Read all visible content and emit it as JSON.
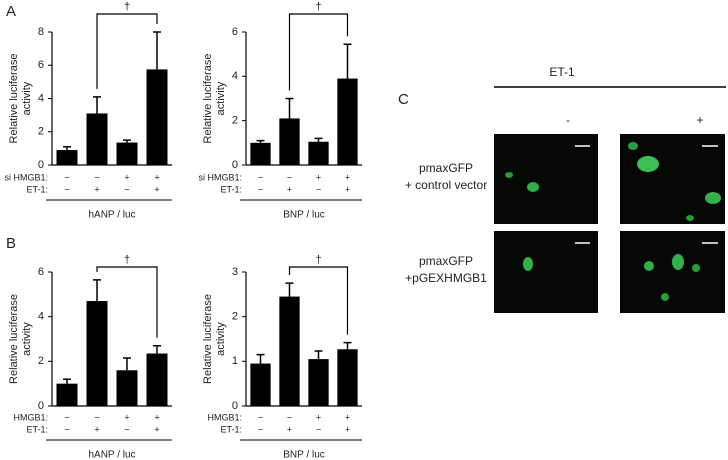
{
  "panel_labels": [
    "A",
    "B",
    "C"
  ],
  "chart_data": [
    {
      "type": "bar",
      "ylabel": [
        "Relative luciferase",
        "activity"
      ],
      "xlabel": "hANP / luc",
      "values": [
        0.9,
        3.1,
        1.35,
        5.75
      ],
      "errors": [
        0.2,
        1.0,
        0.15,
        2.25
      ],
      "color": "#000000",
      "ylim": [
        0,
        8
      ],
      "yticks": [
        0,
        2,
        4,
        6,
        8
      ],
      "significance": "†",
      "treatments": [
        {
          "label": "si HMGB1:",
          "signs": [
            "−",
            "−",
            "+",
            "+"
          ]
        },
        {
          "label": "ET-1:",
          "signs": [
            "−",
            "+",
            "−",
            "+"
          ]
        }
      ]
    },
    {
      "type": "bar",
      "ylabel": [
        "Relative luciferase",
        "activity"
      ],
      "xlabel": "BNP / luc",
      "values": [
        1.0,
        2.1,
        1.05,
        3.9
      ],
      "errors": [
        0.1,
        0.9,
        0.15,
        1.55
      ],
      "color": "#000000",
      "ylim": [
        0,
        6
      ],
      "yticks": [
        0,
        2,
        4,
        6
      ],
      "significance": "†",
      "treatments": [
        {
          "label": "si HMGB1:",
          "signs": [
            "−",
            "−",
            "+",
            "+"
          ]
        },
        {
          "label": "ET-1:",
          "signs": [
            "−",
            "+",
            "−",
            "+"
          ]
        }
      ]
    },
    {
      "type": "bar",
      "ylabel": [
        "Relative luciferase",
        "activity"
      ],
      "xlabel": "hANP / luc",
      "values": [
        1.0,
        4.7,
        1.6,
        2.35
      ],
      "errors": [
        0.2,
        0.95,
        0.55,
        0.35
      ],
      "color": "#000000",
      "ylim": [
        0,
        6
      ],
      "yticks": [
        0,
        2,
        4,
        6
      ],
      "significance": "†",
      "treatments": [
        {
          "label": "HMGB1:",
          "signs": [
            "−",
            "−",
            "+",
            "+"
          ]
        },
        {
          "label": "ET-1:",
          "signs": [
            "−",
            "+",
            "−",
            "+"
          ]
        }
      ]
    },
    {
      "type": "bar",
      "ylabel": [
        "Relative luciferase",
        "activity"
      ],
      "xlabel": "BNP / luc",
      "values": [
        0.95,
        2.45,
        1.05,
        1.27
      ],
      "errors": [
        0.2,
        0.3,
        0.18,
        0.15
      ],
      "color": "#000000",
      "ylim": [
        0,
        3
      ],
      "yticks": [
        0,
        1,
        2,
        3
      ],
      "significance": "†",
      "treatments": [
        {
          "label": "HMGB1:",
          "signs": [
            "−",
            "−",
            "+",
            "+"
          ]
        },
        {
          "label": "ET-1:",
          "signs": [
            "−",
            "+",
            "−",
            "+"
          ]
        }
      ]
    }
  ],
  "panel_c": {
    "header": "ET-1",
    "columns": [
      "-",
      "+"
    ],
    "rows": [
      [
        "pmaxGFP",
        "+ control vector"
      ],
      [
        "pmaxGFP",
        "+pGEXHMGB1"
      ]
    ]
  }
}
